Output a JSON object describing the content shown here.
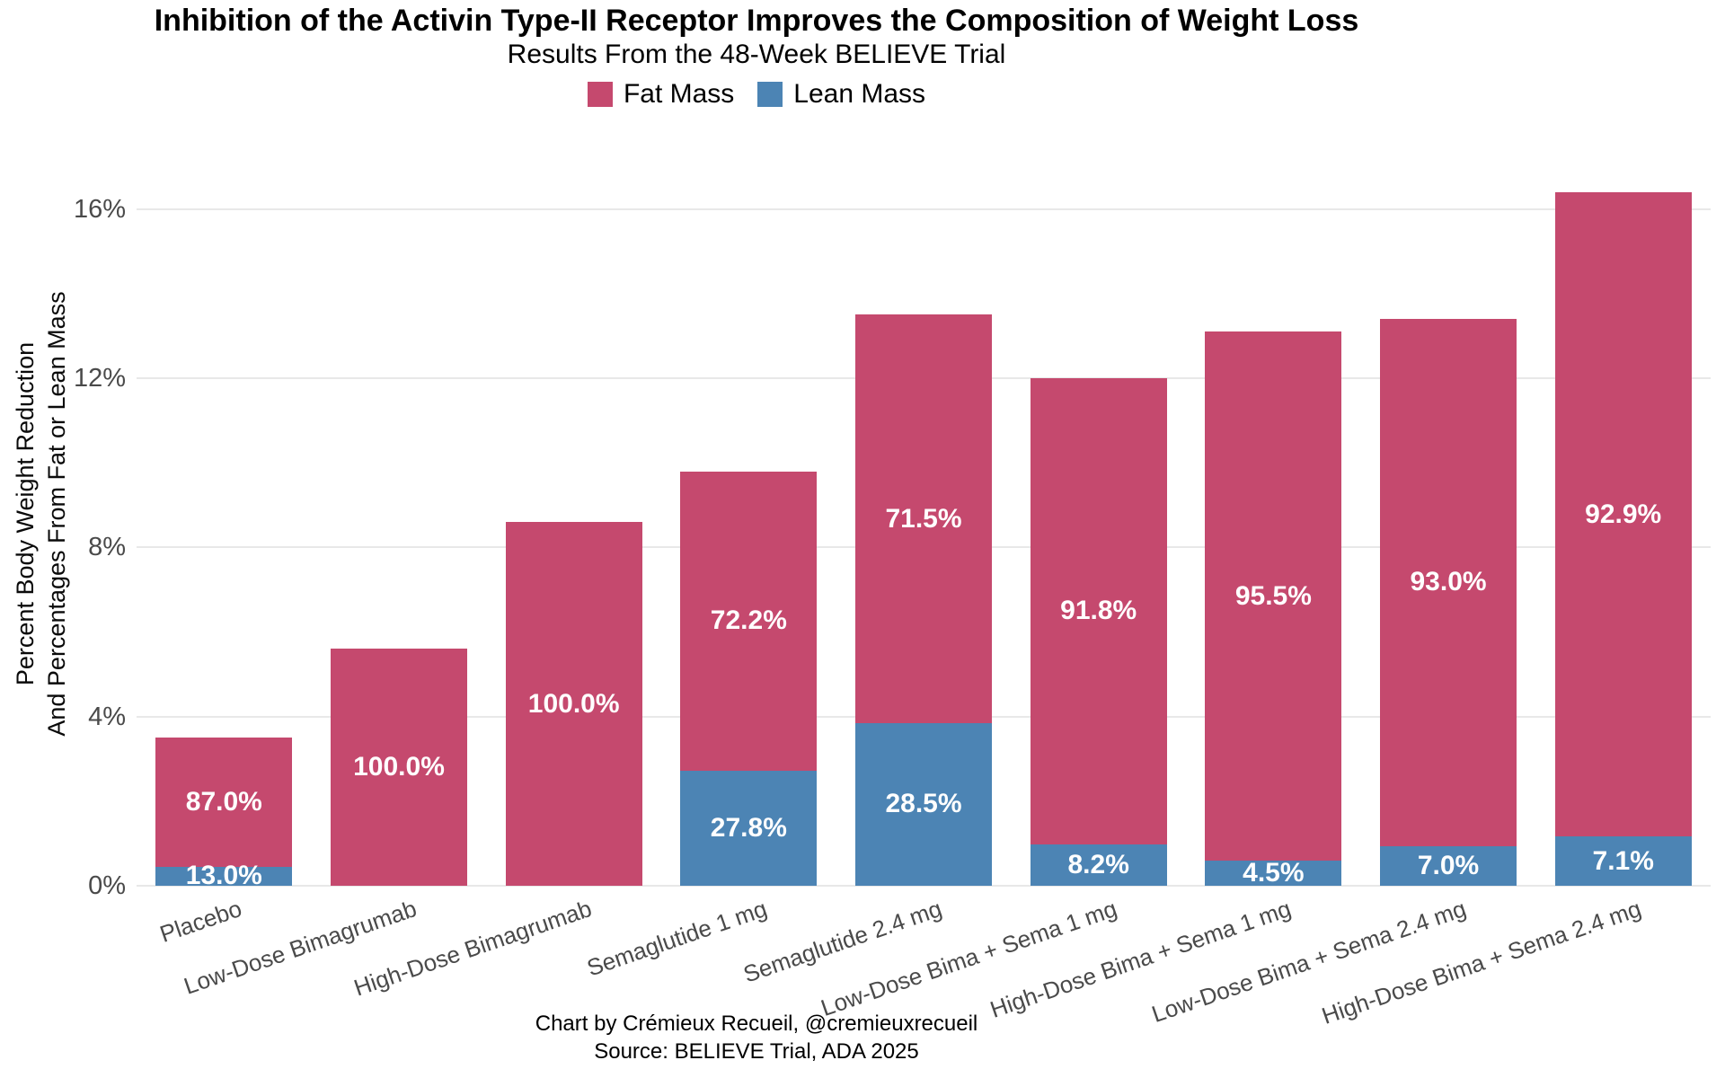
{
  "caption": {
    "line1": "Chart by Crémieux Recueil, @cremieuxrecueil",
    "line2": "Source: BELIEVE Trial, ADA 2025"
  },
  "colors": {
    "fat": "#C5496E",
    "lean": "#4C84B4",
    "gridline": "#E8E8E8",
    "axis_text": "#4A4A4A",
    "bar_label_text": "#FFFFFF",
    "title_text": "#000000"
  },
  "chart_data": {
    "type": "bar",
    "stacked": true,
    "title": "Inhibition of the Activin Type-II Receptor Improves the Composition of Weight Loss",
    "subtitle": "Results From the 48-Week BELIEVE Trial",
    "ylabel_line1": "Percent Body Weight Reduction",
    "ylabel_line2": "And Percentages From Fat or Lean Mass",
    "xlabel": "",
    "ylim": [
      0,
      17.5
    ],
    "yticks": [
      0,
      4,
      8,
      12,
      16
    ],
    "ytick_labels": [
      "0%",
      "4%",
      "8%",
      "12%",
      "16%"
    ],
    "grid": "horizontal",
    "legend_position": "top",
    "categories": [
      "Placebo",
      "Low-Dose Bimagrumab",
      "High-Dose Bimagrumab",
      "Semaglutide 1 mg",
      "Semaglutide 2.4 mg",
      "Low-Dose Bima + Sema 1 mg",
      "High-Dose Bima + Sema 1 mg",
      "Low-Dose Bima + Sema 2.4 mg",
      "High-Dose Bima + Sema 2.4 mg"
    ],
    "totals_percent_body_weight_reduction": [
      3.5,
      5.6,
      8.6,
      9.8,
      13.5,
      12.0,
      13.1,
      13.4,
      16.4
    ],
    "series": [
      {
        "name": "Fat Mass",
        "color": "#C5496E",
        "percent_of_loss": [
          87.0,
          100.0,
          100.0,
          72.2,
          71.5,
          91.8,
          95.5,
          93.0,
          92.9
        ],
        "labels": [
          "87.0%",
          "100.0%",
          "100.0%",
          "72.2%",
          "71.5%",
          "91.8%",
          "95.5%",
          "93.0%",
          "92.9%"
        ],
        "values_percent_body_weight": [
          3.05,
          5.6,
          8.6,
          7.08,
          9.65,
          11.02,
          12.51,
          12.46,
          15.24
        ]
      },
      {
        "name": "Lean Mass",
        "color": "#4C84B4",
        "percent_of_loss": [
          13.0,
          0.0,
          0.0,
          27.8,
          28.5,
          8.2,
          4.5,
          7.0,
          7.1
        ],
        "labels": [
          "13.0%",
          "",
          "",
          "27.8%",
          "28.5%",
          "8.2%",
          "4.5%",
          "7.0%",
          "7.1%"
        ],
        "values_percent_body_weight": [
          0.46,
          0.0,
          0.0,
          2.72,
          3.85,
          0.98,
          0.59,
          0.94,
          1.16
        ]
      }
    ]
  }
}
